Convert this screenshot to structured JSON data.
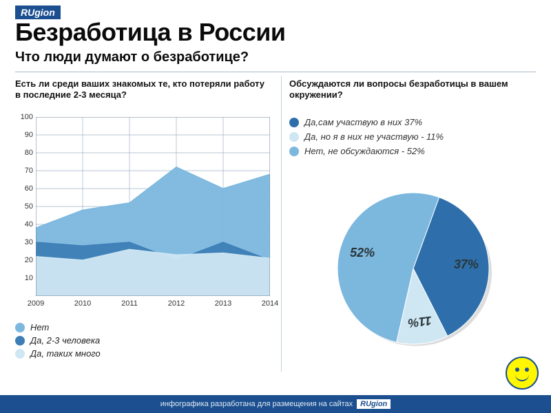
{
  "brand": "RUgion",
  "title": "Безработица в России",
  "subtitle": "Что люди думают о безработице?",
  "left_question": "Есть ли среди ваших знакомых те, кто потеряли работу в последние 2-3 месяца?",
  "right_question": "Обсуждаются ли вопросы безработицы в вашем окружении?",
  "footer_text": "инфографика разработана для размещения на сайтах",
  "footer_brand": "RUgion",
  "area_chart": {
    "type": "area",
    "ylim": [
      0,
      100
    ],
    "ytick_step": 10,
    "x_categories": [
      "2009",
      "2010",
      "2011",
      "2012",
      "2013",
      "2014"
    ],
    "background_color": "#ffffff",
    "grid_color": "#9fb2c4",
    "axis_color": "#6f8299",
    "label_fontsize": 11,
    "series": [
      {
        "name": "Нет",
        "color": "#7cb7de",
        "values": [
          38,
          48,
          52,
          72,
          60,
          68
        ]
      },
      {
        "name": "Да, 2-3 человека",
        "color": "#3d7eb6",
        "values": [
          30,
          28,
          30,
          20,
          30,
          20
        ]
      },
      {
        "name": "Да, таких много",
        "color": "#cfe6f3",
        "values": [
          22,
          20,
          26,
          23,
          24,
          21
        ]
      }
    ]
  },
  "pie_chart": {
    "type": "pie",
    "background_color": "#ffffff",
    "label_fontsize": 18,
    "label_fontstyle": "italic",
    "slices": [
      {
        "name": "Да,сам участвую в них",
        "label": "37%",
        "value": 37,
        "color": "#2e6fab",
        "legend_text": "Да,сам участвую в них  37%"
      },
      {
        "name": "Да, но я в них не участвую",
        "label": "11%",
        "value": 11,
        "color": "#cfe6f3",
        "legend_text": "Да, но я в них не участвую - 11%"
      },
      {
        "name": "Нет, не обсуждаются",
        "label": "52%",
        "value": 52,
        "color": "#7cb7de",
        "legend_text": "Нет, не обсуждаются - 52%"
      }
    ]
  }
}
